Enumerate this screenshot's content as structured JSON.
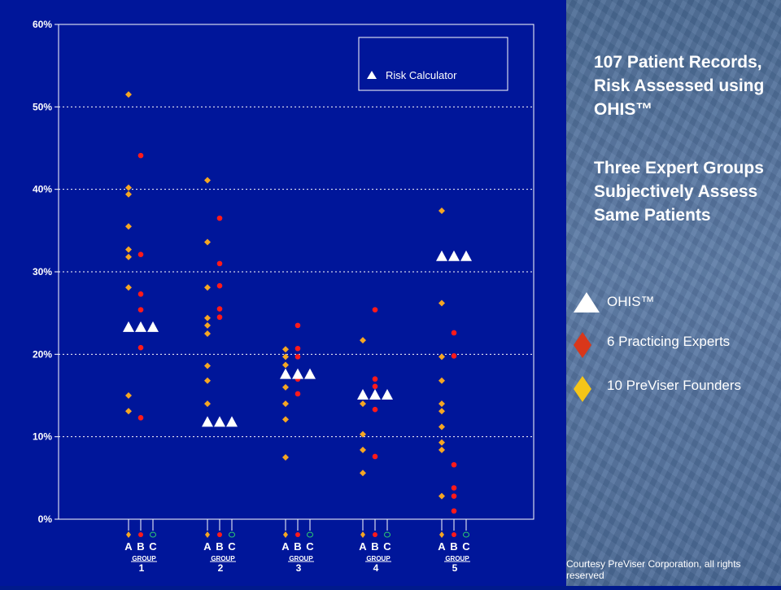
{
  "chart_data": {
    "type": "scatter",
    "y_axis": {
      "ticks": [
        "60%",
        "50%",
        "40%",
        "30%",
        "20%",
        "10%",
        "0%"
      ],
      "tick_values": [
        60,
        50,
        40,
        30,
        20,
        10,
        0
      ],
      "ylim": [
        0,
        60
      ],
      "grid": true,
      "unit": "%"
    },
    "groups": [
      {
        "label": "1",
        "subcolumn_labels": [
          "A",
          "B",
          "C"
        ],
        "group_word": "GROUP"
      },
      {
        "label": "2",
        "subcolumn_labels": [
          "A",
          "B",
          "C"
        ],
        "group_word": "GROUP"
      },
      {
        "label": "3",
        "subcolumn_labels": [
          "A",
          "B",
          "C"
        ],
        "group_word": "GROUP"
      },
      {
        "label": "4",
        "subcolumn_labels": [
          "A",
          "B",
          "C"
        ],
        "group_word": "GROUP"
      },
      {
        "label": "5",
        "subcolumn_labels": [
          "A",
          "B",
          "C"
        ],
        "group_word": "GROUP"
      }
    ],
    "inner_legend": {
      "label": "Risk Calculator",
      "marker": "triangle"
    },
    "series": [
      {
        "name": "10 PreViser Founders",
        "marker": "diamond",
        "color": "#f5a623",
        "column": "A",
        "values": [
          [
            51.5,
            40.2,
            39.4,
            35.5,
            32.7,
            31.8,
            28.1,
            15.0,
            13.1
          ],
          [
            41.1,
            33.6,
            28.1,
            24.4,
            23.5,
            22.5,
            18.6,
            16.8,
            14.0
          ],
          [
            20.6,
            19.7,
            18.7,
            16.0,
            14.0,
            12.1,
            7.5
          ],
          [
            21.7,
            14.9,
            14.0,
            10.3,
            8.4,
            5.6
          ],
          [
            37.4,
            26.2,
            19.7,
            16.8,
            14.0,
            13.1,
            11.2,
            9.3,
            8.4,
            2.8
          ]
        ]
      },
      {
        "name": "6 Practicing Experts",
        "marker": "diamond",
        "color": "#ff1a1a",
        "column": "B",
        "values": [
          [
            44.1,
            32.1,
            27.3,
            25.4,
            20.8,
            12.3
          ],
          [
            36.5,
            31.0,
            28.3,
            25.5,
            24.5
          ],
          [
            23.5,
            20.7,
            19.7,
            17.0,
            15.2
          ],
          [
            25.4,
            17.0,
            16.1,
            13.3,
            7.6
          ],
          [
            22.6,
            19.8,
            6.6,
            3.8,
            2.8,
            1.0
          ]
        ]
      },
      {
        "name": "OHIS™",
        "marker": "triangle",
        "color": "#ffffff",
        "column": "A, B, C",
        "values": [
          23.3,
          11.8,
          17.6,
          15.1,
          31.9
        ]
      }
    ]
  },
  "side_panel": {
    "heading_1": "107 Patient Records, Risk Assessed using OHIS™",
    "heading_2": "Three Expert Groups Subjectively Assess Same Patients",
    "legend": [
      {
        "label": "OHIS™",
        "icon": "white-triangle-icon",
        "color": "#ffffff"
      },
      {
        "label": "6 Practicing Experts",
        "icon": "red-diamond-icon",
        "color": "#d9371a"
      },
      {
        "label": "10 PreViser Founders",
        "icon": "gold-diamond-icon",
        "color": "#f5c518"
      }
    ]
  },
  "footer": {
    "courtesy": "Courtesy PreViser Corporation, all rights reserved"
  }
}
